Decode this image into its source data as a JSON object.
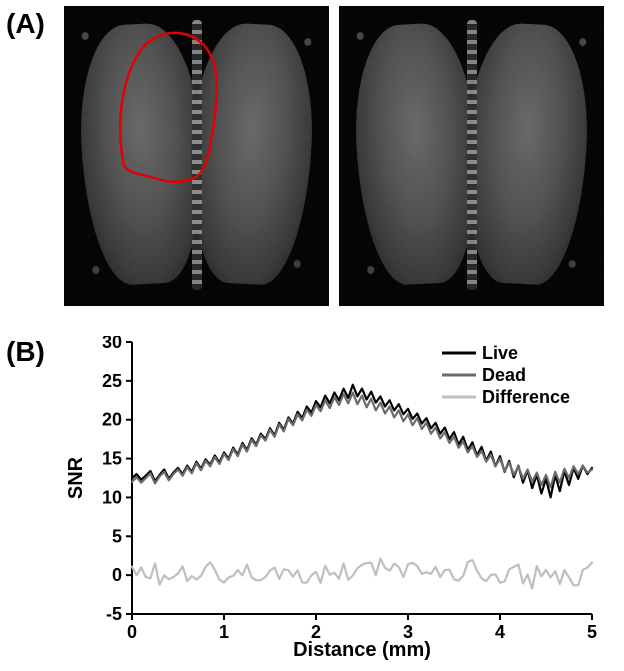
{
  "panelLabels": {
    "A": "(A)",
    "B": "(B)"
  },
  "chart": {
    "type": "line",
    "xlabel": "Distance (mm)",
    "ylabel": "SNR",
    "label_fontsize": 20,
    "label_fontweight": "700",
    "tick_fontsize": 18,
    "tick_fontweight": "700",
    "xlim": [
      0,
      5
    ],
    "ylim": [
      -5,
      30
    ],
    "xtick_step": 1,
    "ytick_step": 5,
    "background_color": "#ffffff",
    "axis_color": "#000000",
    "axis_width": 2,
    "grid": false,
    "legend": {
      "position": "top-right",
      "fontsize": 18,
      "fontweight": "700",
      "items": [
        {
          "label": "Live",
          "color": "#000000",
          "dash": null,
          "width": 2.2
        },
        {
          "label": "Dead",
          "color": "#6b6b6b",
          "dash": null,
          "width": 2.2
        },
        {
          "label": "Difference",
          "color": "#bfbfbf",
          "dash": null,
          "width": 2.2
        }
      ]
    },
    "series": [
      {
        "name": "Live",
        "color": "#000000",
        "width": 2.2,
        "x_step": 0.05,
        "y": [
          12.5,
          13.0,
          12.3,
          12.8,
          13.4,
          12.1,
          12.9,
          13.6,
          12.4,
          13.2,
          13.8,
          13.0,
          14.1,
          13.3,
          14.6,
          13.7,
          14.9,
          14.2,
          15.4,
          14.5,
          15.8,
          15.0,
          16.4,
          15.5,
          17.0,
          16.1,
          17.6,
          16.8,
          18.2,
          17.5,
          18.9,
          18.0,
          19.6,
          18.7,
          20.3,
          19.5,
          21.0,
          20.2,
          21.7,
          20.9,
          22.4,
          21.6,
          23.1,
          22.1,
          23.5,
          22.5,
          24.0,
          22.8,
          24.5,
          23.0,
          24.0,
          22.6,
          23.6,
          22.2,
          23.0,
          21.7,
          22.5,
          21.2,
          22.0,
          20.7,
          21.4,
          20.1,
          20.8,
          19.5,
          20.2,
          18.9,
          19.6,
          18.2,
          19.0,
          17.5,
          18.4,
          16.8,
          17.8,
          16.1,
          17.1,
          15.4,
          16.5,
          14.7,
          15.9,
          14.0,
          15.3,
          13.3,
          14.7,
          12.6,
          14.1,
          11.9,
          13.5,
          11.2,
          12.9,
          10.5,
          12.4,
          10.0,
          12.9,
          10.8,
          13.4,
          11.6,
          13.8,
          12.4,
          14.1,
          13.0,
          13.8
        ]
      },
      {
        "name": "Dead",
        "color": "#6b6b6b",
        "width": 2.2,
        "x_step": 0.05,
        "y": [
          12.0,
          12.6,
          11.9,
          12.5,
          13.1,
          11.8,
          12.7,
          13.3,
          12.2,
          13.0,
          13.6,
          12.8,
          13.9,
          13.1,
          14.4,
          13.5,
          14.7,
          14.0,
          15.2,
          14.3,
          15.6,
          14.8,
          16.2,
          15.3,
          16.8,
          15.9,
          17.4,
          16.6,
          18.0,
          17.3,
          18.7,
          17.8,
          19.4,
          18.5,
          20.1,
          19.3,
          20.7,
          19.9,
          21.3,
          20.5,
          21.9,
          21.1,
          22.5,
          21.5,
          22.9,
          21.9,
          23.3,
          22.1,
          23.5,
          22.0,
          23.1,
          21.6,
          22.7,
          21.2,
          22.2,
          20.8,
          21.7,
          20.3,
          21.2,
          19.8,
          20.7,
          19.3,
          20.2,
          18.8,
          19.6,
          18.2,
          19.0,
          17.6,
          18.4,
          17.0,
          17.8,
          16.4,
          17.2,
          15.8,
          16.6,
          15.2,
          16.0,
          14.6,
          15.5,
          14.0,
          15.0,
          13.4,
          14.5,
          12.9,
          14.0,
          12.4,
          13.6,
          12.0,
          13.2,
          11.6,
          12.9,
          11.3,
          13.3,
          11.9,
          13.7,
          12.5,
          14.0,
          13.0,
          14.1,
          13.2,
          13.6
        ]
      },
      {
        "name": "Difference",
        "color": "#bfbfbf",
        "width": 2.2,
        "x_step": 0.05,
        "y": [
          0.5,
          0.4,
          0.4,
          0.3,
          0.3,
          0.3,
          0.2,
          0.3,
          0.2,
          0.2,
          0.2,
          0.2,
          0.2,
          0.2,
          0.2,
          0.2,
          0.2,
          0.2,
          0.2,
          0.2,
          0.2,
          0.2,
          0.2,
          0.2,
          0.2,
          0.2,
          0.2,
          0.2,
          0.2,
          0.2,
          0.2,
          0.2,
          0.2,
          0.2,
          0.2,
          0.2,
          0.3,
          0.3,
          0.4,
          0.4,
          0.5,
          0.5,
          0.6,
          0.6,
          0.6,
          0.6,
          0.7,
          0.7,
          1.0,
          1.0,
          0.9,
          1.0,
          0.9,
          1.0,
          0.8,
          0.9,
          0.8,
          0.9,
          0.8,
          0.9,
          0.7,
          0.8,
          0.6,
          0.7,
          0.6,
          0.7,
          0.6,
          0.6,
          0.6,
          0.5,
          0.6,
          0.4,
          0.6,
          0.3,
          0.5,
          0.2,
          0.5,
          0.1,
          0.4,
          0.0,
          0.3,
          -0.1,
          0.2,
          -0.3,
          0.1,
          -0.5,
          -0.1,
          -0.8,
          -0.3,
          -1.1,
          -0.5,
          -1.3,
          -0.4,
          -1.1,
          -0.3,
          -0.9,
          -0.2,
          -0.6,
          0.0,
          -0.2,
          0.2
        ],
        "noise_amp": 3.0
      }
    ],
    "roi_outline_color": "#e40000",
    "roi_outline_width": 2.5
  }
}
